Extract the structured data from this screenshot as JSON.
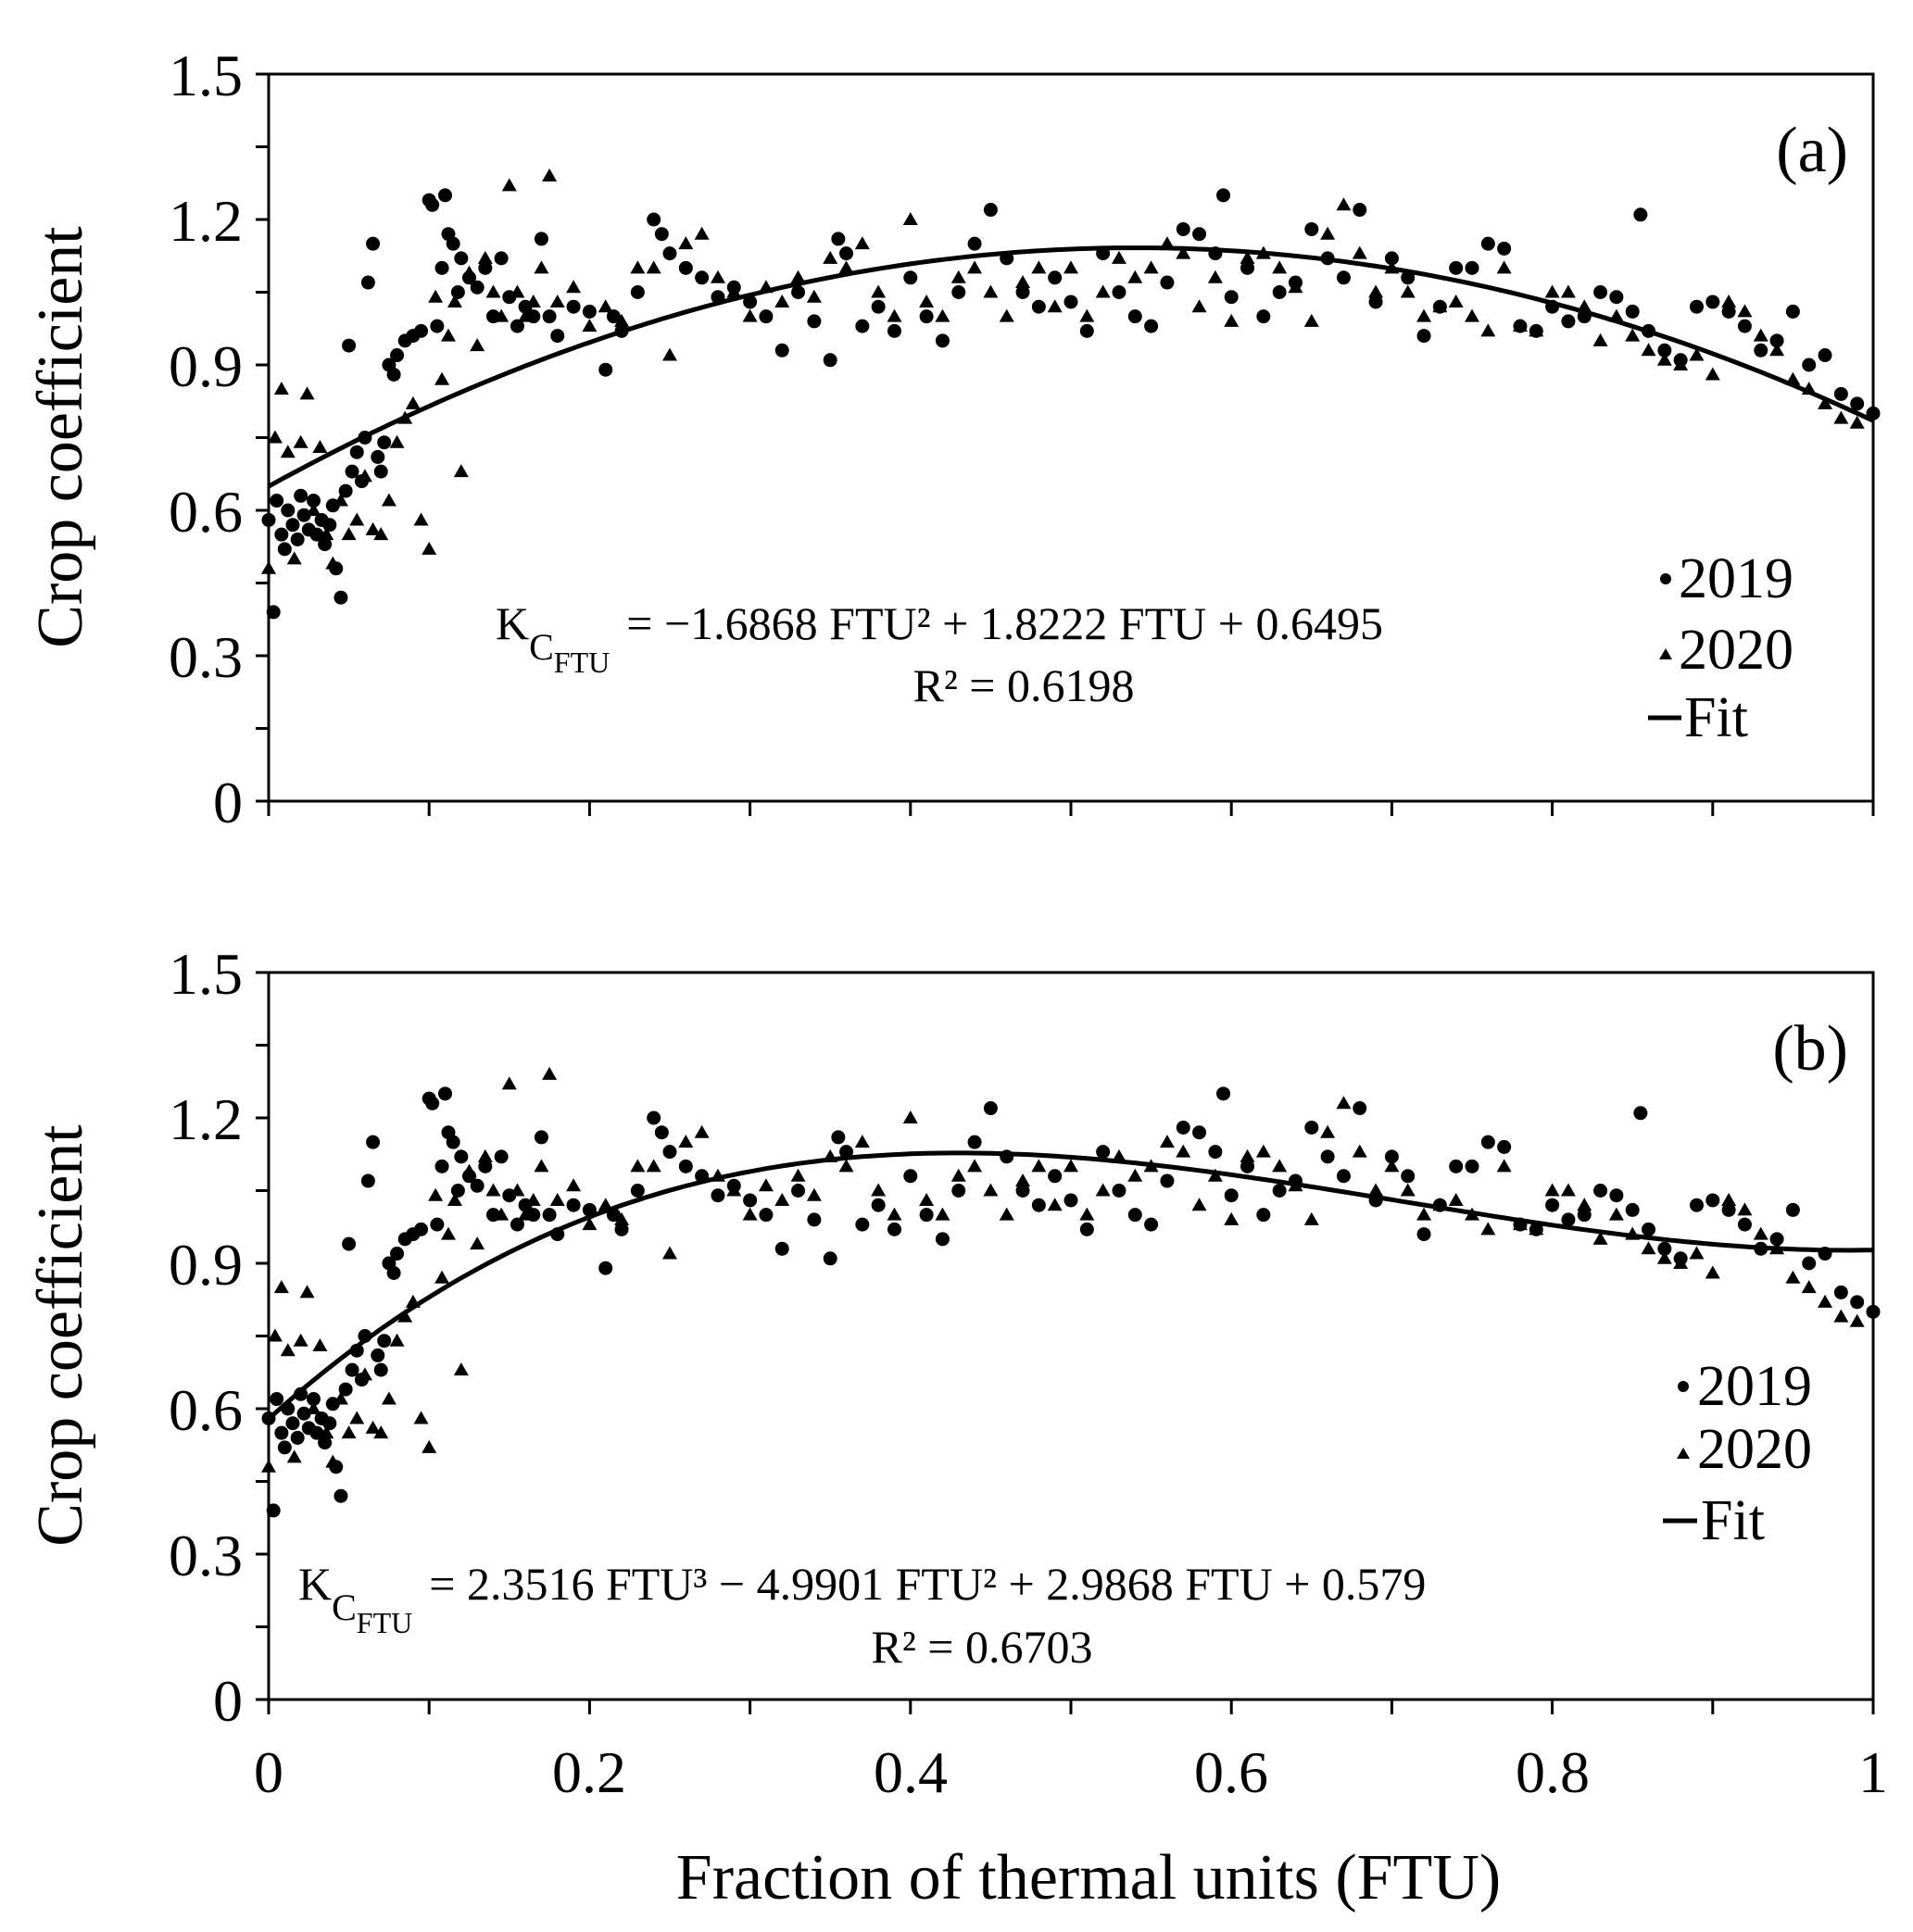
{
  "chart_data": [
    {
      "type": "scatter",
      "panel_label": "(a)",
      "ylabel": "Crop coefficient",
      "xlim": [
        0,
        1
      ],
      "ylim": [
        0,
        1.5
      ],
      "y_ticks": [
        "0",
        "0.3",
        "0.6",
        "0.9",
        "1.2",
        "1.5"
      ],
      "legend": [
        "2019",
        "2020",
        "Fit"
      ],
      "equation": {
        "lhs_main": "K",
        "lhs_sub": "C",
        "lhs_subsub": "FTU",
        "rhs": "= −1.6868 FTU² + 1.8222 FTU + 0.6495"
      },
      "r2": "R² = 0.6198",
      "fit": {
        "degree": 2,
        "coefficients": [
          0.6495,
          1.8222,
          -1.6868
        ]
      }
    },
    {
      "type": "scatter",
      "panel_label": "(b)",
      "ylabel": "Crop coefficient",
      "xlabel": "Fraction of thermal units (FTU)",
      "xlim": [
        0,
        1
      ],
      "ylim": [
        0,
        1.5
      ],
      "x_ticks": [
        "0",
        "0.2",
        "0.4",
        "0.6",
        "0.8",
        "1"
      ],
      "y_ticks": [
        "0",
        "0.3",
        "0.6",
        "0.9",
        "1.2",
        "1.5"
      ],
      "legend": [
        "2019",
        "2020",
        "Fit"
      ],
      "equation": {
        "lhs_main": "K",
        "lhs_sub": "C",
        "lhs_subsub": "FTU",
        "rhs": "= 2.3516 FTU³ − 4.9901 FTU² + 2.9868 FTU + 0.579"
      },
      "r2": "R² = 0.6703",
      "fit": {
        "degree": 3,
        "coefficients": [
          0.579,
          2.9868,
          -4.9901,
          2.3516
        ]
      }
    }
  ],
  "series": {
    "2019": {
      "x": [
        0.0,
        0.003,
        0.005,
        0.008,
        0.01,
        0.012,
        0.015,
        0.018,
        0.02,
        0.022,
        0.025,
        0.028,
        0.03,
        0.033,
        0.035,
        0.038,
        0.04,
        0.042,
        0.045,
        0.048,
        0.05,
        0.052,
        0.055,
        0.058,
        0.06,
        0.062,
        0.065,
        0.068,
        0.07,
        0.072,
        0.075,
        0.078,
        0.08,
        0.085,
        0.09,
        0.095,
        0.1,
        0.102,
        0.105,
        0.108,
        0.11,
        0.112,
        0.115,
        0.118,
        0.12,
        0.125,
        0.13,
        0.135,
        0.14,
        0.145,
        0.15,
        0.155,
        0.16,
        0.165,
        0.17,
        0.175,
        0.18,
        0.19,
        0.2,
        0.21,
        0.215,
        0.22,
        0.23,
        0.24,
        0.245,
        0.25,
        0.26,
        0.27,
        0.28,
        0.29,
        0.3,
        0.31,
        0.32,
        0.33,
        0.34,
        0.35,
        0.355,
        0.36,
        0.37,
        0.38,
        0.39,
        0.4,
        0.41,
        0.42,
        0.43,
        0.44,
        0.45,
        0.46,
        0.47,
        0.48,
        0.49,
        0.5,
        0.51,
        0.52,
        0.53,
        0.54,
        0.55,
        0.56,
        0.57,
        0.58,
        0.59,
        0.595,
        0.6,
        0.61,
        0.62,
        0.63,
        0.64,
        0.65,
        0.66,
        0.67,
        0.68,
        0.69,
        0.7,
        0.71,
        0.72,
        0.73,
        0.74,
        0.75,
        0.76,
        0.77,
        0.78,
        0.79,
        0.8,
        0.81,
        0.82,
        0.83,
        0.84,
        0.85,
        0.855,
        0.86,
        0.87,
        0.88,
        0.89,
        0.9,
        0.91,
        0.92,
        0.93,
        0.94,
        0.95,
        0.96,
        0.97,
        0.98,
        0.99,
        1.0
      ],
      "y": [
        0.58,
        0.39,
        0.62,
        0.55,
        0.52,
        0.6,
        0.57,
        0.54,
        0.63,
        0.59,
        0.56,
        0.62,
        0.55,
        0.58,
        0.53,
        0.57,
        0.61,
        0.48,
        0.42,
        0.64,
        0.94,
        0.68,
        0.72,
        0.66,
        0.75,
        1.07,
        1.15,
        0.71,
        0.68,
        0.74,
        0.9,
        0.88,
        0.92,
        0.95,
        0.96,
        0.97,
        1.24,
        1.23,
        0.98,
        1.1,
        1.25,
        1.17,
        1.15,
        1.05,
        1.12,
        1.08,
        1.06,
        1.1,
        1.0,
        1.12,
        1.04,
        0.98,
        1.02,
        1.0,
        1.16,
        1.0,
        0.96,
        1.02,
        1.01,
        0.89,
        1.0,
        0.97,
        1.05,
        1.2,
        1.17,
        1.13,
        1.1,
        1.08,
        1.04,
        1.06,
        1.03,
        1.0,
        0.93,
        1.05,
        0.99,
        0.91,
        1.16,
        1.13,
        0.98,
        1.02,
        0.97,
        1.08,
        1.0,
        0.95,
        1.05,
        1.15,
        1.22,
        1.12,
        1.05,
        1.02,
        1.08,
        1.03,
        0.97,
        1.13,
        1.05,
        1.0,
        0.98,
        1.07,
        1.18,
        1.17,
        1.13,
        1.25,
        1.04,
        1.1,
        1.0,
        1.05,
        1.07,
        1.18,
        1.12,
        1.08,
        1.22,
        1.03,
        1.12,
        1.08,
        0.96,
        1.02,
        1.1,
        1.1,
        1.15,
        1.14,
        0.98,
        0.97,
        1.02,
        0.99,
        1.0,
        1.05,
        1.04,
        1.01,
        1.21,
        0.97,
        0.93,
        0.91,
        1.02,
        1.03,
        1.01,
        0.98,
        0.93,
        0.95,
        1.01,
        0.9,
        0.92,
        0.84,
        0.82,
        0.8
      ]
    },
    "2020": {
      "x": [
        0.0,
        0.004,
        0.008,
        0.012,
        0.016,
        0.02,
        0.024,
        0.028,
        0.032,
        0.036,
        0.04,
        0.045,
        0.05,
        0.055,
        0.06,
        0.065,
        0.07,
        0.075,
        0.08,
        0.085,
        0.09,
        0.095,
        0.1,
        0.104,
        0.108,
        0.112,
        0.116,
        0.12,
        0.125,
        0.13,
        0.135,
        0.14,
        0.145,
        0.15,
        0.155,
        0.16,
        0.165,
        0.17,
        0.175,
        0.18,
        0.19,
        0.2,
        0.21,
        0.22,
        0.23,
        0.24,
        0.25,
        0.26,
        0.27,
        0.28,
        0.29,
        0.3,
        0.31,
        0.32,
        0.33,
        0.34,
        0.35,
        0.36,
        0.37,
        0.38,
        0.39,
        0.4,
        0.41,
        0.42,
        0.43,
        0.44,
        0.45,
        0.46,
        0.47,
        0.48,
        0.49,
        0.5,
        0.51,
        0.52,
        0.53,
        0.54,
        0.55,
        0.56,
        0.57,
        0.58,
        0.59,
        0.6,
        0.61,
        0.62,
        0.63,
        0.64,
        0.65,
        0.66,
        0.67,
        0.68,
        0.69,
        0.7,
        0.71,
        0.72,
        0.73,
        0.74,
        0.75,
        0.76,
        0.77,
        0.78,
        0.79,
        0.8,
        0.81,
        0.82,
        0.83,
        0.84,
        0.85,
        0.86,
        0.87,
        0.88,
        0.89,
        0.9,
        0.91,
        0.92,
        0.93,
        0.94,
        0.95,
        0.96,
        0.97,
        0.98,
        0.99
      ],
      "y": [
        0.48,
        0.75,
        0.85,
        0.72,
        0.5,
        0.74,
        0.84,
        0.6,
        0.73,
        0.55,
        0.49,
        0.62,
        0.55,
        0.58,
        0.67,
        0.56,
        0.55,
        0.62,
        0.74,
        0.79,
        0.82,
        0.58,
        0.52,
        1.04,
        0.87,
        0.96,
        1.03,
        0.68,
        1.09,
        0.94,
        1.12,
        1.05,
        1.0,
        1.27,
        1.05,
        1.0,
        1.03,
        1.1,
        1.29,
        1.03,
        1.06,
        0.98,
        1.02,
        0.99,
        1.1,
        1.1,
        0.92,
        1.15,
        1.17,
        1.08,
        1.05,
        1.0,
        1.06,
        1.03,
        1.08,
        1.04,
        1.12,
        1.1,
        1.15,
        1.05,
        1.0,
        1.2,
        1.03,
        1.0,
        1.08,
        1.1,
        1.05,
        1.0,
        1.07,
        1.1,
        1.02,
        1.1,
        1.0,
        1.05,
        1.12,
        1.08,
        1.1,
        1.15,
        1.13,
        1.02,
        1.08,
        0.99,
        1.12,
        1.13,
        1.1,
        1.06,
        0.99,
        1.17,
        1.23,
        1.13,
        1.05,
        1.1,
        1.05,
        1.0,
        1.02,
        1.03,
        1.0,
        0.97,
        1.1,
        0.98,
        0.97,
        1.05,
        1.05,
        1.02,
        0.95,
        1.0,
        0.96,
        0.93,
        0.91,
        0.9,
        0.92,
        0.88,
        1.03,
        1.01,
        0.96,
        0.93,
        0.87,
        0.85,
        0.82,
        0.79,
        0.78
      ]
    }
  }
}
